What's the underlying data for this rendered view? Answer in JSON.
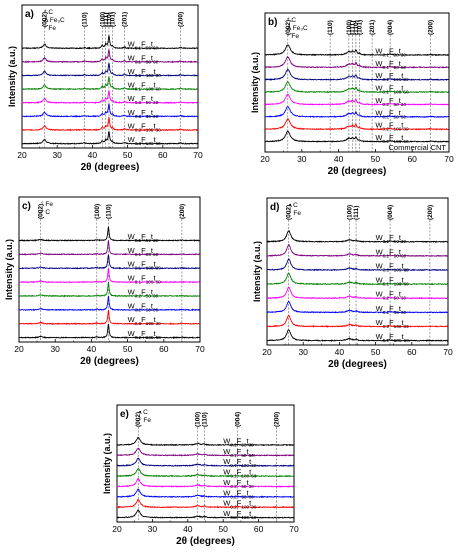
{
  "chart_data": [
    {
      "panel_label": "a)",
      "type": "line",
      "xlabel": "2θ (degrees)",
      "ylabel": "Intensity (a.u.)",
      "xlim": [
        20,
        70
      ],
      "xticks": [
        20,
        30,
        40,
        50,
        60,
        70
      ],
      "legend": [
        {
          "symbol": "*",
          "text": "C"
        },
        {
          "symbol": "Δ",
          "text": "Fe₃C"
        },
        {
          "symbol": "°",
          "text": "Fe"
        }
      ],
      "peak_labels": [
        {
          "text": "(002)",
          "x": 26.4
        },
        {
          "text": "(110)",
          "x": 37.7
        },
        {
          "text": "(100)",
          "x": 42.8
        },
        {
          "text": "(111)",
          "x": 43.8
        },
        {
          "text": "(110)",
          "x": 44.7
        },
        {
          "text": "(101)",
          "x": 45.7
        },
        {
          "text": "(201)",
          "x": 49.1
        },
        {
          "text": "(200)",
          "x": 65.0
        }
      ],
      "series": [
        {
          "name": "W0.2F100t60",
          "color": "#000000"
        },
        {
          "name": "W0.2F100t30",
          "color": "#ff0000"
        },
        {
          "name": "W0.2F50t60",
          "color": "#0000ff"
        },
        {
          "name": "W0.2F50t30",
          "color": "#ff00ff"
        },
        {
          "name": "W0.1F100t60",
          "color": "#008000"
        },
        {
          "name": "W0.1F100t30",
          "color": "#000080"
        },
        {
          "name": "W0.1F50t60",
          "color": "#800080"
        },
        {
          "name": "W0.1F50t30",
          "color": "#000000"
        }
      ]
    },
    {
      "panel_label": "b)",
      "type": "line",
      "xlabel": "2θ (degrees)",
      "ylabel": "Intensity (a.u.)",
      "xlim": [
        20,
        70
      ],
      "xticks": [
        20,
        30,
        40,
        50,
        60,
        70
      ],
      "legend": [
        {
          "symbol": "*",
          "text": "C"
        },
        {
          "symbol": "Δ",
          "text": "Fe₃C"
        },
        {
          "symbol": "°",
          "text": "Fe"
        }
      ],
      "annotation": "Commercial CNT",
      "peak_labels": [
        {
          "text": "(002)",
          "x": 26.2
        },
        {
          "text": "(110)",
          "x": 37.7
        },
        {
          "text": "(100)",
          "x": 42.8
        },
        {
          "text": "(111)",
          "x": 43.8
        },
        {
          "text": "(110)",
          "x": 44.7
        },
        {
          "text": "(101)",
          "x": 45.7
        },
        {
          "text": "(201)",
          "x": 49.1
        },
        {
          "text": "(004)",
          "x": 54.0
        },
        {
          "text": "(200)",
          "x": 65.0
        }
      ],
      "series": [
        {
          "name": "W0.2F100t60",
          "color": "#000000"
        },
        {
          "name": "W0.2F100t30",
          "color": "#ff0000"
        },
        {
          "name": "W0.2F50t60",
          "color": "#0000ff"
        },
        {
          "name": "W0.2F50t30",
          "color": "#ff00ff"
        },
        {
          "name": "W0.1F100t60",
          "color": "#008000"
        },
        {
          "name": "W0.1F100t30",
          "color": "#000080"
        },
        {
          "name": "W0.1F50t60",
          "color": "#800080"
        },
        {
          "name": "W0.1F50t30",
          "color": "#000000"
        }
      ]
    },
    {
      "panel_label": "c)",
      "type": "line",
      "xlabel": "2θ (degrees)",
      "ylabel": "Intensity (a.u.)",
      "xlim": [
        20,
        70
      ],
      "xticks": [
        20,
        30,
        40,
        50,
        60,
        70
      ],
      "legend": [
        {
          "symbol": "°",
          "text": "Fe"
        },
        {
          "symbol": "*",
          "text": "C"
        }
      ],
      "peak_labels": [
        {
          "text": "(002)",
          "x": 26.0
        },
        {
          "text": "(100)",
          "x": 41.5
        },
        {
          "text": "(110)",
          "x": 44.7
        },
        {
          "text": "(200)",
          "x": 65.0
        }
      ],
      "series": [
        {
          "name": "W0.2F100t60",
          "color": "#000000"
        },
        {
          "name": "W0.2F100t30",
          "color": "#ff0000"
        },
        {
          "name": "W0.2F50t60",
          "color": "#0000ff"
        },
        {
          "name": "W0.2F50t30",
          "color": "#008000"
        },
        {
          "name": "W0.1F100t60",
          "color": "#ff00ff"
        },
        {
          "name": "W0.1F100t30",
          "color": "#000080"
        },
        {
          "name": "W0.1F50t60",
          "color": "#800080"
        },
        {
          "name": "W0.1F50t30",
          "color": "#000000"
        }
      ]
    },
    {
      "panel_label": "d)",
      "type": "line",
      "xlabel": "2θ (degrees)",
      "ylabel": "Intensity (a.u.)",
      "xlim": [
        20,
        70
      ],
      "xticks": [
        20,
        30,
        40,
        50,
        60,
        70
      ],
      "legend": [
        {
          "symbol": "•",
          "text": "C"
        },
        {
          "symbol": "°",
          "text": "Fe"
        }
      ],
      "peak_labels": [
        {
          "text": "(002)",
          "x": 26.0
        },
        {
          "text": "(100)",
          "x": 42.8
        },
        {
          "text": "(111)",
          "x": 44.6
        },
        {
          "text": "(004)",
          "x": 54.0
        },
        {
          "text": "(200)",
          "x": 65.0
        }
      ],
      "series": [
        {
          "name": "W0.2F100t60",
          "color": "#000000"
        },
        {
          "name": "W0.2F100t30",
          "color": "#ff0000"
        },
        {
          "name": "W0.2F50t60",
          "color": "#0000ff"
        },
        {
          "name": "W0.2F50t30",
          "color": "#ff00ff"
        },
        {
          "name": "W0.1F100t60",
          "color": "#008000"
        },
        {
          "name": "W0.1F100t30",
          "color": "#000080"
        },
        {
          "name": "W0.1F50t60",
          "color": "#800080"
        },
        {
          "name": "W0.1F50t30",
          "color": "#000000"
        }
      ]
    },
    {
      "panel_label": "e)",
      "type": "line",
      "xlabel": "2θ (degrees)",
      "ylabel": "Intensity (a.u.)",
      "xlim": [
        20,
        70
      ],
      "xticks": [
        20,
        30,
        40,
        50,
        60,
        70
      ],
      "legend": [
        {
          "symbol": "•",
          "text": "C"
        },
        {
          "symbol": "°",
          "text": "Fe"
        }
      ],
      "peak_labels": [
        {
          "text": "(002)",
          "x": 26.0
        },
        {
          "text": "(100)",
          "x": 42.8
        },
        {
          "text": "(110)",
          "x": 44.7
        },
        {
          "text": "(004)",
          "x": 54.0
        },
        {
          "text": "(200)",
          "x": 65.0
        }
      ],
      "series": [
        {
          "name": "W0.2F100t60",
          "color": "#000000"
        },
        {
          "name": "W0.2F100t30",
          "color": "#ff0000"
        },
        {
          "name": "W0.2F50t60",
          "color": "#0000ff"
        },
        {
          "name": "W0.2F50t30",
          "color": "#ff00ff"
        },
        {
          "name": "W0.1F100t60",
          "color": "#008000"
        },
        {
          "name": "W0.1F100t30",
          "color": "#000080"
        },
        {
          "name": "W0.1F50t60",
          "color": "#800080"
        },
        {
          "name": "W0.1F50t30",
          "color": "#000000"
        }
      ]
    }
  ]
}
